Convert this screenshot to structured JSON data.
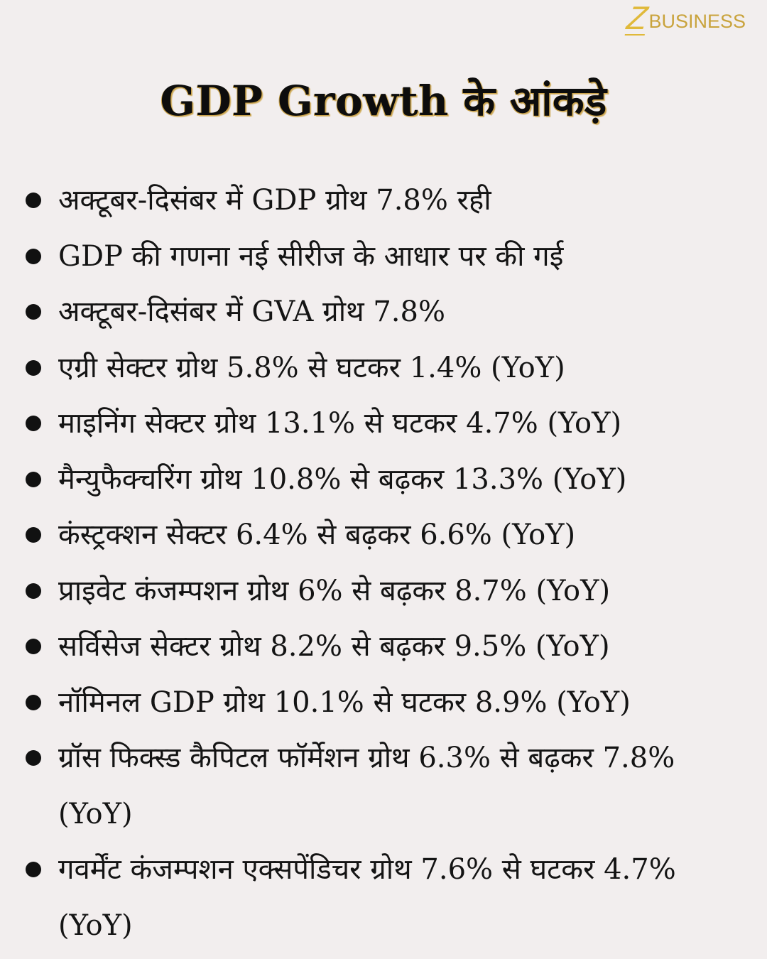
{
  "brand": {
    "logo_letter": "Z",
    "logo_text": "BUSINESS",
    "color": "#c9a33c"
  },
  "title": "GDP Growth के आंकड़े",
  "bullets": [
    {
      "text": "अक्टूबर-दिसंबर में GDP ग्रोथ 7.8% रही"
    },
    {
      "text": "GDP की गणना नई सीरीज के आधार पर की गई"
    },
    {
      "text": "अक्टूबर-दिसंबर में GVA ग्रोथ 7.8%"
    },
    {
      "text": "एग्री सेक्टर ग्रोथ 5.8% से घटकर 1.4% (YoY)"
    },
    {
      "text": "माइनिंग सेक्टर ग्रोथ 13.1% से घटकर 4.7% (YoY)"
    },
    {
      "text": "मैन्युफैक्चरिंग ग्रोथ 10.8% से बढ़कर 13.3% (YoY)"
    },
    {
      "text": "कंस्ट्रक्शन सेक्टर 6.4% से बढ़कर 6.6% (YoY)"
    },
    {
      "text": "प्राइवेट कंजम्पशन ग्रोथ 6% से बढ़कर 8.7% (YoY)"
    },
    {
      "text": "सर्विसेज सेक्टर ग्रोथ 8.2% से बढ़कर 9.5% (YoY)"
    },
    {
      "text": "नॉमिनल GDP ग्रोथ 10.1% से घटकर 8.9% (YoY)"
    },
    {
      "text": "ग्रॉस फिक्स्ड कैपिटल फॉर्मेशन ग्रोथ 6.3% से बढ़कर 7.8% (YoY)"
    },
    {
      "text": "गवर्मेंट कंजम्पशन एक्सपेंडिचर ग्रोथ 7.6% से घटकर 4.7% (YoY)"
    }
  ]
}
